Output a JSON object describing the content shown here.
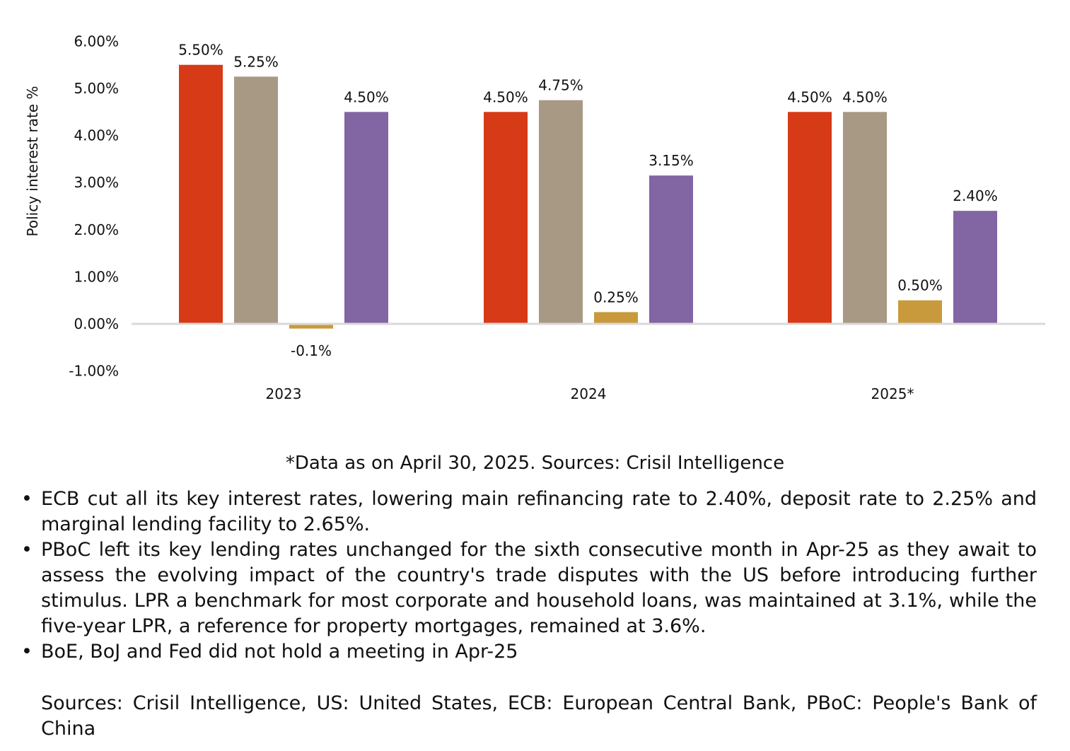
{
  "chart_data": {
    "type": "bar",
    "ylabel": "Policy interest rate %",
    "categories": [
      "2023",
      "2024",
      "2025*"
    ],
    "yticks": [
      "6.00%",
      "5.00%",
      "4.00%",
      "3.00%",
      "2.00%",
      "1.00%",
      "0.00%",
      "-1.00%"
    ],
    "ylim": [
      -1,
      6
    ],
    "grid": false,
    "legend": "none",
    "series": [
      {
        "color": "#d63a16",
        "values": [
          5.5,
          4.5,
          4.5
        ],
        "labels": [
          "5.50%",
          "4.50%",
          "4.50%"
        ]
      },
      {
        "color": "#a89985",
        "values": [
          5.25,
          4.75,
          4.5
        ],
        "labels": [
          "5.25%",
          "4.75%",
          "4.50%"
        ]
      },
      {
        "color": "#c99a3c",
        "values": [
          -0.1,
          0.25,
          0.5
        ],
        "labels": [
          "-0.1%",
          "0.25%",
          "0.50%"
        ]
      },
      {
        "color": "#8265a3",
        "values": [
          4.5,
          3.15,
          2.4
        ],
        "labels": [
          "4.50%",
          "3.15%",
          "2.40%"
        ]
      }
    ]
  },
  "footnote": "*Data as on April 30, 2025. Sources: Crisil Intelligence",
  "bullet_symbol": "•",
  "bullets": [
    "ECB cut all its key interest rates, lowering main refinancing rate to 2.40%, deposit rate to 2.25% and marginal lending facility to 2.65%.",
    "PBoC left its key lending rates unchanged for the sixth consecutive month in Apr-25 as they await to assess the evolving impact of the country's trade disputes with the US before introducing further stimulus. LPR a benchmark for most corporate and household loans, was maintained at 3.1%, while the five-year LPR, a reference for property mortgages, remained at 3.6%.",
    "BoE, BoJ and Fed did not hold a meeting in Apr-25"
  ],
  "sources": "Sources: Crisil Intelligence, US: United States, ECB: European Central Bank, PBoC: People's Bank of China"
}
